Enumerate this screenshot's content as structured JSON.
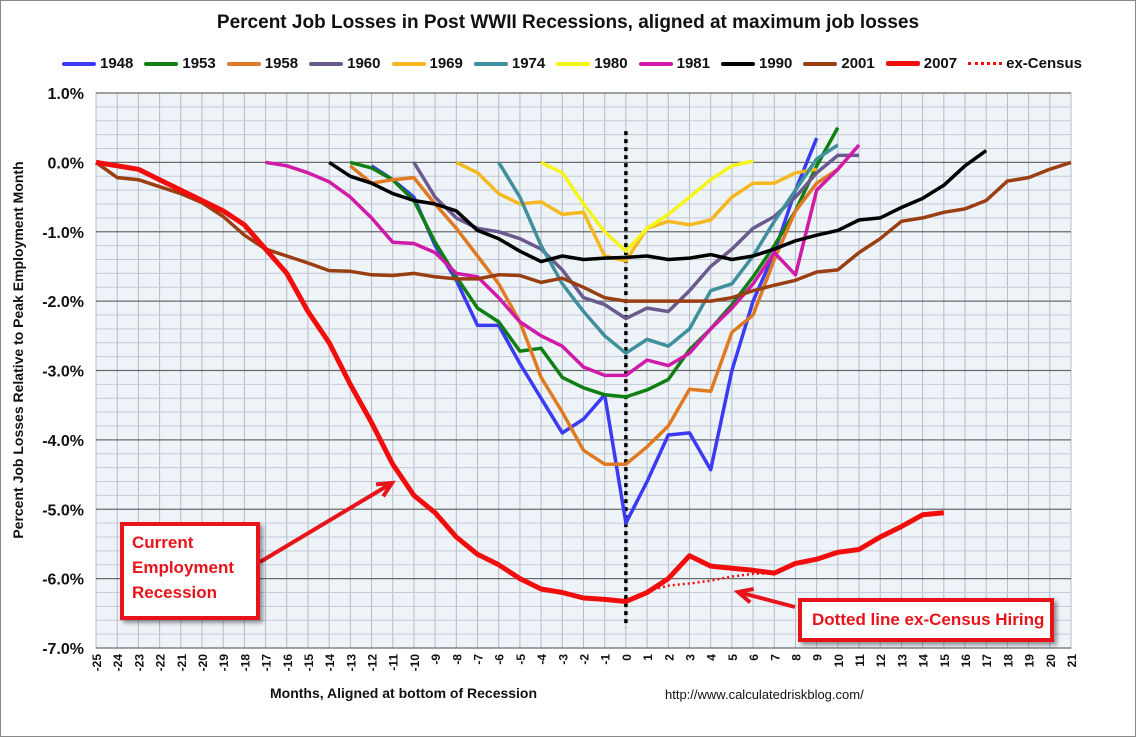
{
  "chart_data": {
    "type": "line",
    "title": "Percent Job Losses in Post WWII Recessions, aligned at maximum job losses",
    "xlabel": "Months, Aligned at bottom of Recession",
    "ylabel": "Percent Job Losses Relative to Peak Employment Month",
    "source": "http://www.calculatedriskblog.com/",
    "xlim": [
      -25,
      21
    ],
    "ylim": [
      -7.0,
      1.0
    ],
    "y_ticks": [
      "1.0%",
      "0.0%",
      "-1.0%",
      "-2.0%",
      "-3.0%",
      "-4.0%",
      "-5.0%",
      "-6.0%",
      "-7.0%"
    ],
    "y_tick_values": [
      1,
      0,
      -1,
      -2,
      -3,
      -4,
      -5,
      -6,
      -7
    ],
    "grid": true,
    "legend_placement": "top",
    "series": [
      {
        "name": "1948",
        "color": "#3b3bf5",
        "x0": -12,
        "values": [
          -0.05,
          -0.25,
          -0.5,
          -1.2,
          -1.7,
          -2.35,
          -2.35,
          -2.9,
          -3.4,
          -3.9,
          -3.7,
          -3.35,
          -5.2,
          -4.6,
          -3.93,
          -3.9,
          -4.43,
          -3.0,
          -2.0,
          -1.3,
          -0.4,
          0.35
        ]
      },
      {
        "name": "1953",
        "color": "#0f7f12",
        "x0": -13,
        "values": [
          0,
          -0.08,
          -0.25,
          -0.55,
          -1.15,
          -1.65,
          -2.1,
          -2.3,
          -2.72,
          -2.68,
          -3.1,
          -3.25,
          -3.35,
          -3.38,
          -3.28,
          -3.13,
          -2.7,
          -2.4,
          -2.05,
          -1.65,
          -1.2,
          -0.7,
          -0.05,
          0.5
        ]
      },
      {
        "name": "1958",
        "color": "#e07a22",
        "x0": -13,
        "values": [
          -0.05,
          -0.3,
          -0.25,
          -0.22,
          -0.6,
          -0.95,
          -1.35,
          -1.75,
          -2.3,
          -3.1,
          -3.6,
          -4.15,
          -4.35,
          -4.35,
          -4.1,
          -3.8,
          -3.27,
          -3.3,
          -2.45,
          -2.2,
          -1.4,
          -0.7,
          -0.3,
          -0.1
        ]
      },
      {
        "name": "1960",
        "color": "#6b5a8e",
        "x0": -10,
        "values": [
          0,
          -0.5,
          -0.8,
          -0.95,
          -1.0,
          -1.1,
          -1.25,
          -1.55,
          -1.95,
          -2.05,
          -2.25,
          -2.1,
          -2.15,
          -1.85,
          -1.5,
          -1.25,
          -0.95,
          -0.78,
          -0.5,
          -0.15,
          0.1,
          0.1
        ]
      },
      {
        "name": "1969",
        "color": "#f5b820",
        "x0": -8,
        "values": [
          0,
          -0.15,
          -0.45,
          -0.6,
          -0.57,
          -0.75,
          -0.72,
          -1.35,
          -1.42,
          -0.95,
          -0.85,
          -0.9,
          -0.83,
          -0.5,
          -0.3,
          -0.3,
          -0.15,
          -0.1
        ]
      },
      {
        "name": "1974",
        "color": "#3f8f9c",
        "x0": -6,
        "values": [
          0,
          -0.5,
          -1.2,
          -1.75,
          -2.15,
          -2.5,
          -2.75,
          -2.55,
          -2.65,
          -2.4,
          -1.85,
          -1.75,
          -1.35,
          -0.85,
          -0.4,
          0.05,
          0.25
        ]
      },
      {
        "name": "1980",
        "color": "#f5f51a",
        "x0": -4,
        "values": [
          0,
          -0.15,
          -0.6,
          -1.0,
          -1.28,
          -0.95,
          -0.75,
          -0.5,
          -0.25,
          -0.05,
          0.02
        ]
      },
      {
        "name": "1981",
        "color": "#d01aa8",
        "x0": -17,
        "values": [
          0,
          -0.05,
          -0.15,
          -0.28,
          -0.5,
          -0.8,
          -1.15,
          -1.17,
          -1.3,
          -1.6,
          -1.65,
          -1.95,
          -2.3,
          -2.5,
          -2.65,
          -2.95,
          -3.07,
          -3.07,
          -2.85,
          -2.93,
          -2.75,
          -2.4,
          -2.1,
          -1.75,
          -1.3,
          -1.62,
          -0.4,
          -0.1,
          0.25
        ]
      },
      {
        "name": "1990",
        "color": "#000000",
        "x0": -14,
        "values": [
          0,
          -0.2,
          -0.3,
          -0.45,
          -0.55,
          -0.6,
          -0.7,
          -0.98,
          -1.1,
          -1.28,
          -1.43,
          -1.35,
          -1.4,
          -1.38,
          -1.37,
          -1.35,
          -1.4,
          -1.38,
          -1.33,
          -1.4,
          -1.35,
          -1.25,
          -1.13,
          -1.05,
          -0.98,
          -0.83,
          -0.8,
          -0.65,
          -0.52,
          -0.33,
          -0.05,
          0.17
        ]
      },
      {
        "name": "2001",
        "color": "#9a3f12",
        "x0": -25,
        "values": [
          0,
          -0.22,
          -0.25,
          -0.35,
          -0.45,
          -0.58,
          -0.78,
          -1.05,
          -1.25,
          -1.35,
          -1.45,
          -1.56,
          -1.57,
          -1.62,
          -1.63,
          -1.6,
          -1.65,
          -1.68,
          -1.68,
          -1.62,
          -1.63,
          -1.73,
          -1.67,
          -1.8,
          -1.95,
          -2.0,
          -2.0,
          -2.0,
          -2.0,
          -2.0,
          -1.95,
          -1.85,
          -1.77,
          -1.7,
          -1.58,
          -1.55,
          -1.3,
          -1.1,
          -0.85,
          -0.8,
          -0.72,
          -0.67,
          -0.55,
          -0.27,
          -0.22,
          -0.1,
          0
        ]
      },
      {
        "name": "2007",
        "color": "#f20d0d",
        "x0": -25,
        "values": [
          0,
          -0.05,
          -0.1,
          -0.25,
          -0.4,
          -0.55,
          -0.7,
          -0.9,
          -1.25,
          -1.6,
          -2.15,
          -2.6,
          -3.2,
          -3.75,
          -4.35,
          -4.8,
          -5.05,
          -5.4,
          -5.65,
          -5.8,
          -6.0,
          -6.15,
          -6.2,
          -6.28,
          -6.3,
          -6.33,
          -6.2,
          -6.0,
          -5.67,
          -5.82,
          -5.85,
          -5.88,
          -5.92,
          -5.78,
          -5.72,
          -5.62,
          -5.58,
          -5.4,
          -5.25,
          -5.08,
          -5.05
        ]
      },
      {
        "name": "ex-Census",
        "color": "#f20d0d",
        "dotted": true,
        "x0": 0,
        "values": [
          -6.33,
          -6.18,
          -6.1,
          -6.07,
          -6.03,
          -5.97,
          -5.93,
          -5.92
        ]
      }
    ],
    "annotations": [
      {
        "text_lines": [
          "Current",
          "Employment",
          "Recession"
        ],
        "points_to_month": -11
      },
      {
        "text_lines": [
          "Dotted line ex-Census Hiring"
        ],
        "points_to_month": 5
      }
    ]
  }
}
